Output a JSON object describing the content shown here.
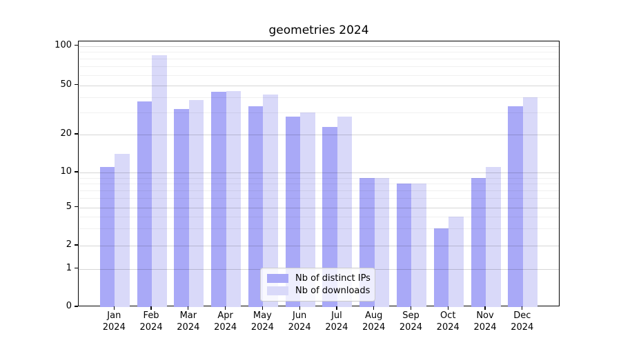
{
  "chart_data": {
    "type": "bar",
    "title": "geometries 2024",
    "categories": [
      "Jan 2024",
      "Feb 2024",
      "Mar 2024",
      "Apr 2024",
      "May 2024",
      "Jun 2024",
      "Jul 2024",
      "Aug 2024",
      "Sep 2024",
      "Oct 2024",
      "Nov 2024",
      "Dec 2024"
    ],
    "series": [
      {
        "name": "Nb of distinct IPs",
        "color": "#a9a9f7",
        "values": [
          11,
          37,
          32,
          44,
          34,
          28,
          23,
          9,
          8,
          3,
          9,
          34
        ]
      },
      {
        "name": "Nb of downloads",
        "color": "#d9d9f9",
        "values": [
          14,
          85,
          38,
          45,
          42,
          30,
          28,
          9,
          8,
          4,
          11,
          40
        ]
      }
    ],
    "yscale": "log",
    "ylim": [
      0,
      110
    ],
    "y_ticks": [
      0,
      1,
      2,
      5,
      10,
      20,
      50,
      100
    ],
    "y_tick_labels": [
      "0",
      "1",
      "2",
      "5",
      "10",
      "20",
      "50",
      "100"
    ],
    "y_minor_gridlines": [
      3,
      4,
      6,
      7,
      8,
      9,
      30,
      40,
      60,
      70,
      80,
      90
    ],
    "grid": true,
    "legend_position": "lower center"
  },
  "colors": {
    "bar_distinct_ips": "#a9a9f7",
    "bar_downloads": "#d9d9f9",
    "grid_major": "rgba(0,0,0,0.16)",
    "grid_minor": "rgba(0,0,0,0.06)",
    "axis": "#000000",
    "legend_border": "#cbcbcb"
  }
}
